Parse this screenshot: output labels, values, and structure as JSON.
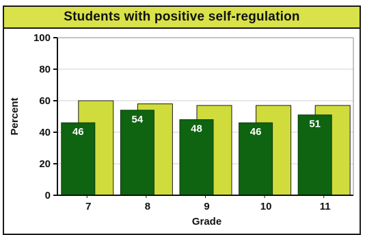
{
  "chart_data": {
    "type": "bar",
    "title": "Students with positive self-regulation",
    "xlabel": "Grade",
    "ylabel": "Percent",
    "categories": [
      "7",
      "8",
      "9",
      "10",
      "11"
    ],
    "ylim": [
      0,
      100
    ],
    "yticks": [
      0,
      20,
      40,
      60,
      80,
      100
    ],
    "grid": true,
    "series": [
      {
        "values": [
          60,
          58,
          57,
          57,
          57
        ],
        "color": "#cfdc3c"
      },
      {
        "values": [
          46,
          54,
          48,
          46,
          51
        ],
        "color": "#0e6410"
      }
    ],
    "data_labels": [
      "46",
      "54",
      "48",
      "46",
      "51"
    ]
  },
  "colors": {
    "title_background": "#d9e24a",
    "grid": "#d0d0d0",
    "axis": "#111111"
  }
}
